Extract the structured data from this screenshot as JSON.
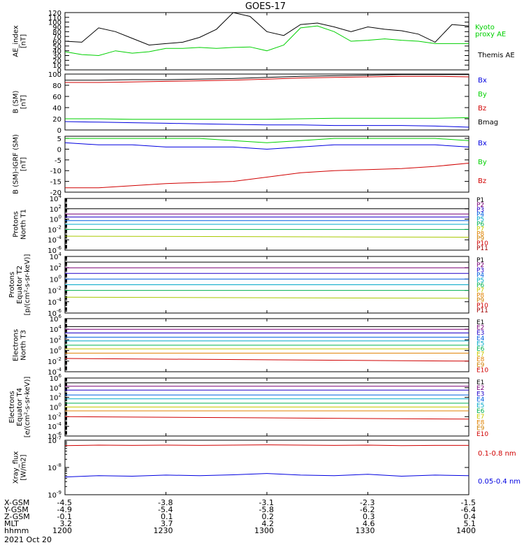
{
  "title": "GOES-17",
  "colors": {
    "black": "#000000",
    "green": "#00d000",
    "blue": "#0000e0",
    "red": "#d00000"
  },
  "chart_data": [
    {
      "type": "line",
      "id": "ae",
      "ylabel": [
        "AE_index",
        "[nT]"
      ],
      "ylim": [
        0,
        120
      ],
      "y_ticks": [
        0,
        10,
        20,
        30,
        40,
        50,
        60,
        70,
        80,
        90,
        100,
        110,
        120
      ],
      "x": [
        1200,
        1205,
        1210,
        1215,
        1220,
        1225,
        1230,
        1235,
        1240,
        1245,
        1250,
        1255,
        1300,
        1305,
        1310,
        1315,
        1320,
        1325,
        1330,
        1335,
        1340,
        1345,
        1350,
        1355,
        1400
      ],
      "series": [
        {
          "name": "Themis AE",
          "color": "#000000",
          "values": [
            60,
            58,
            88,
            80,
            66,
            52,
            55,
            58,
            68,
            85,
            120,
            112,
            80,
            72,
            95,
            98,
            90,
            80,
            90,
            85,
            82,
            75,
            58,
            95,
            92
          ]
        },
        {
          "name": "Kyoto proxy AE",
          "color": "#00d000",
          "values": [
            38,
            32,
            30,
            40,
            35,
            38,
            45,
            45,
            47,
            45,
            47,
            48,
            40,
            52,
            88,
            92,
            80,
            60,
            62,
            65,
            62,
            60,
            55,
            55,
            55
          ]
        }
      ],
      "legend": [
        "Kyoto",
        "proxy AE",
        "Themis AE"
      ]
    },
    {
      "type": "line",
      "id": "bsm",
      "ylabel": [
        "B (SM)",
        "[nT]"
      ],
      "ylim": [
        0,
        100
      ],
      "y_ticks": [
        0,
        20,
        40,
        60,
        80,
        100
      ],
      "x": [
        1200,
        1210,
        1220,
        1230,
        1240,
        1250,
        1300,
        1310,
        1320,
        1330,
        1340,
        1350,
        1400
      ],
      "series": [
        {
          "name": "Bx",
          "color": "#0000e0",
          "values": [
            15,
            14,
            13,
            12,
            11,
            10,
            9,
            9,
            8,
            8,
            8,
            7,
            5
          ]
        },
        {
          "name": "By",
          "color": "#00d000",
          "values": [
            20,
            20,
            19,
            19,
            19,
            19,
            19,
            20,
            21,
            21,
            21,
            21,
            22
          ]
        },
        {
          "name": "Bz",
          "color": "#d00000",
          "values": [
            85,
            85,
            86,
            87,
            88,
            89,
            91,
            93,
            94,
            95,
            96,
            96,
            95
          ]
        },
        {
          "name": "Bmag",
          "color": "#000000",
          "values": [
            89,
            89,
            90,
            90,
            91,
            92,
            94,
            96,
            97,
            98,
            99,
            99,
            99
          ]
        }
      ]
    },
    {
      "type": "line",
      "id": "bigrf",
      "ylabel": [
        "B (SM)-IGRF (SM)",
        "[nT]"
      ],
      "ylim": [
        -20,
        6
      ],
      "y_ticks": [
        -20,
        -15,
        -10,
        -5,
        0,
        5
      ],
      "x": [
        1200,
        1210,
        1220,
        1230,
        1240,
        1250,
        1300,
        1310,
        1320,
        1330,
        1340,
        1350,
        1400
      ],
      "series": [
        {
          "name": "Bx",
          "color": "#0000e0",
          "values": [
            3,
            2,
            2,
            1,
            1,
            1,
            0,
            1,
            2,
            2,
            2,
            2,
            1
          ]
        },
        {
          "name": "By",
          "color": "#00d000",
          "values": [
            5,
            5,
            5,
            5,
            5,
            4,
            3,
            4,
            5,
            5,
            5,
            5,
            4
          ]
        },
        {
          "name": "Bz",
          "color": "#d00000",
          "values": [
            -18,
            -18,
            -17,
            -16,
            -15.5,
            -15,
            -13,
            -11,
            -10,
            -9.5,
            -9,
            -8,
            -6.5
          ]
        }
      ]
    },
    {
      "type": "line",
      "id": "pn",
      "ylabel": [
        "Protons",
        "North T1"
      ],
      "log": true,
      "ylim": [
        -6,
        4
      ],
      "y_tick_exponents": [
        -6,
        -4,
        -2,
        0,
        2,
        4
      ],
      "x": [
        1200,
        1400
      ],
      "series": [
        {
          "name": "P1",
          "color": "#000000",
          "values": [
            2,
            2
          ]
        },
        {
          "name": "P2",
          "color": "#7a0077",
          "values": [
            1,
            1
          ]
        },
        {
          "name": "P3",
          "color": "#2000c8",
          "values": [
            0.4,
            0.4
          ]
        },
        {
          "name": "P4",
          "color": "#0060e0",
          "values": [
            -0.3,
            -0.3
          ]
        },
        {
          "name": "P5",
          "color": "#00a8c8",
          "values": [
            -1,
            -1
          ]
        },
        {
          "name": "P6",
          "color": "#00b050",
          "values": [
            -2,
            -2
          ]
        },
        {
          "name": "P7",
          "color": "#a8c800",
          "values": [
            -3.3,
            -3.5
          ]
        }
      ],
      "legend": [
        "P1",
        "P2",
        "P3",
        "P4",
        "P5",
        "P6",
        "P7",
        "P8",
        "P9",
        "P10",
        "P11"
      ]
    },
    {
      "type": "line",
      "id": "pe",
      "ylabel": [
        "Protons",
        "Equator T2",
        "[p/(cm²-s-sr-keV)]"
      ],
      "log": true,
      "ylim": [
        -6,
        4
      ],
      "y_tick_exponents": [
        -6,
        -4,
        -2,
        0,
        2,
        4
      ],
      "x": [
        1200,
        1400
      ],
      "series": [
        {
          "name": "P1",
          "color": "#000000",
          "values": [
            3,
            3
          ]
        },
        {
          "name": "P2",
          "color": "#7a0077",
          "values": [
            2,
            2
          ]
        },
        {
          "name": "P3",
          "color": "#2000c8",
          "values": [
            1,
            1
          ]
        },
        {
          "name": "P4",
          "color": "#0060e0",
          "values": [
            0,
            0
          ]
        },
        {
          "name": "P5",
          "color": "#00a8c8",
          "values": [
            -1,
            -1
          ]
        },
        {
          "name": "P6",
          "color": "#00b050",
          "values": [
            -2,
            -2
          ]
        },
        {
          "name": "P7",
          "color": "#a8c800",
          "values": [
            -3.2,
            -3.4
          ]
        }
      ],
      "legend": [
        "P1",
        "P2",
        "P3",
        "P4",
        "P5",
        "P6",
        "P7",
        "P8",
        "P9",
        "P10",
        "P11"
      ]
    },
    {
      "type": "line",
      "id": "en",
      "ylabel": [
        "Electrons",
        "North T3"
      ],
      "log": true,
      "ylim": [
        -4,
        6
      ],
      "y_tick_exponents": [
        -4,
        -2,
        0,
        2,
        4,
        6
      ],
      "x": [
        1200,
        1400
      ],
      "series": [
        {
          "name": "E1",
          "color": "#000000",
          "values": [
            4.5,
            4.5
          ]
        },
        {
          "name": "E2",
          "color": "#7a0077",
          "values": [
            4,
            4
          ]
        },
        {
          "name": "E3",
          "color": "#2000c8",
          "values": [
            3.3,
            3.3
          ]
        },
        {
          "name": "E4",
          "color": "#0060e0",
          "values": [
            2.5,
            2.5
          ]
        },
        {
          "name": "E5",
          "color": "#00a8c8",
          "values": [
            1.8,
            1.8
          ]
        },
        {
          "name": "E6",
          "color": "#00b050",
          "values": [
            1,
            1
          ]
        },
        {
          "name": "E7",
          "color": "#c8c800",
          "values": [
            0.3,
            0.3
          ]
        },
        {
          "name": "E8",
          "color": "#e08000",
          "values": [
            -0.5,
            -0.5
          ]
        },
        {
          "name": "E9",
          "color": "#d00000",
          "values": [
            -1.5,
            -2
          ]
        }
      ],
      "legend": [
        "E1",
        "E2",
        "E3",
        "E4",
        "E5",
        "E6",
        "E7",
        "E8",
        "E9",
        "E10"
      ]
    },
    {
      "type": "line",
      "id": "ee",
      "ylabel": [
        "Electrons",
        "Equator T4",
        "[e/(cm²-s-sr-keV)]"
      ],
      "log": true,
      "ylim": [
        -6,
        6
      ],
      "y_tick_exponents": [
        -6,
        -4,
        -2,
        0,
        2,
        4,
        6
      ],
      "x": [
        1200,
        1400
      ],
      "series": [
        {
          "name": "E1",
          "color": "#000000",
          "values": [
            5,
            5
          ]
        },
        {
          "name": "E2",
          "color": "#7a0077",
          "values": [
            4.3,
            4.3
          ]
        },
        {
          "name": "E3",
          "color": "#2000c8",
          "values": [
            3.5,
            3.5
          ]
        },
        {
          "name": "E4",
          "color": "#0060e0",
          "values": [
            2.5,
            2.5
          ]
        },
        {
          "name": "E5",
          "color": "#00a8c8",
          "values": [
            1.7,
            1.7
          ]
        },
        {
          "name": "E6",
          "color": "#00b050",
          "values": [
            0.8,
            0.8
          ]
        },
        {
          "name": "E7",
          "color": "#c8c800",
          "values": [
            0,
            0
          ]
        },
        {
          "name": "E8",
          "color": "#e08000",
          "values": [
            -0.8,
            -0.8
          ]
        },
        {
          "name": "E9",
          "color": "#d00000",
          "values": [
            -2,
            -2.5
          ]
        }
      ],
      "legend": [
        "E1",
        "E2",
        "E3",
        "E4",
        "E5",
        "E6",
        "E7",
        "E8",
        "E9",
        "E10"
      ]
    },
    {
      "type": "line",
      "id": "xray",
      "ylabel": [
        "Xray_flux",
        "[W/m2]"
      ],
      "log": true,
      "ylim": [
        -9,
        -7
      ],
      "y_tick_exponents": [
        -9,
        -8,
        -7
      ],
      "x": [
        1200,
        1210,
        1220,
        1230,
        1240,
        1250,
        1300,
        1310,
        1320,
        1330,
        1340,
        1350,
        1400
      ],
      "series": [
        {
          "name": "0.1-0.8 nm",
          "color": "#d00000",
          "values": [
            -7.2,
            -7.18,
            -7.19,
            -7.18,
            -7.19,
            -7.18,
            -7.17,
            -7.18,
            -7.19,
            -7.18,
            -7.2,
            -7.19,
            -7.19
          ]
        },
        {
          "name": "0.05-0.4 nm",
          "color": "#0000e0",
          "values": [
            -8.35,
            -8.3,
            -8.32,
            -8.28,
            -8.3,
            -8.27,
            -8.22,
            -8.28,
            -8.3,
            -8.25,
            -8.32,
            -8.28,
            -8.3
          ]
        }
      ],
      "legend": [
        "0.1-0.8 nm",
        "0.05-0.4 nm"
      ]
    }
  ],
  "x_axis": {
    "rows": [
      {
        "label": "X-GSM",
        "values": [
          "-4.5",
          "-3.8",
          "-3.1",
          "-2.3",
          "-1.5"
        ]
      },
      {
        "label": "Y-GSM",
        "values": [
          "-4.9",
          "-5.4",
          "-5.8",
          "-6.2",
          "-6.4"
        ]
      },
      {
        "label": "Z-GSM",
        "values": [
          "-0.1",
          "0.1",
          "0.2",
          "0.3",
          "0.4"
        ]
      },
      {
        "label": "MLT",
        "values": [
          "3.2",
          "3.7",
          "4.2",
          "4.6",
          "5.1"
        ]
      },
      {
        "label": "hhmm",
        "values": [
          "1200",
          "1230",
          "1300",
          "1330",
          "1400"
        ]
      }
    ],
    "date": "2021 Oct 20"
  }
}
